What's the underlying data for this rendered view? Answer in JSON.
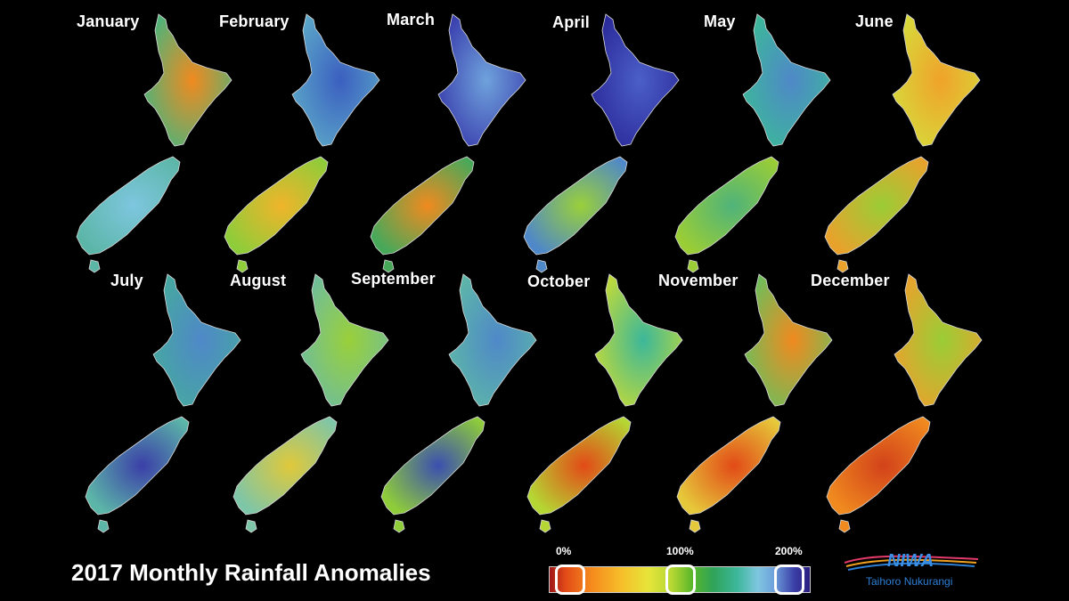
{
  "months": [
    {
      "label": "January",
      "colors": {
        "north": "#4fb37a",
        "north_hot": "#f08a1f",
        "south": "#5cb6a8",
        "south_hot": "#7ec6df"
      }
    },
    {
      "label": "February",
      "colors": {
        "north": "#5aa6c8",
        "north_hot": "#3b5fc0",
        "south": "#8fcc3a",
        "south_hot": "#f0b42a"
      }
    },
    {
      "label": "March",
      "colors": {
        "north": "#3a3fae",
        "north_hot": "#6fa2dc",
        "south": "#48a85a",
        "south_hot": "#f08a1f"
      }
    },
    {
      "label": "April",
      "colors": {
        "north": "#2b2a9a",
        "north_hot": "#4b5fc8",
        "south": "#4f88c8",
        "south_hot": "#9ad03a"
      }
    },
    {
      "label": "May",
      "colors": {
        "north": "#3cb79a",
        "north_hot": "#4f88c8",
        "south": "#9acd36",
        "south_hot": "#4fb37a"
      }
    },
    {
      "label": "June",
      "colors": {
        "north": "#d7d93a",
        "north_hot": "#f0a22a",
        "south": "#e8a22c",
        "south_hot": "#9acd36"
      }
    },
    {
      "label": "July",
      "colors": {
        "north": "#46a8a0",
        "north_hot": "#4f88c8",
        "south": "#5cb6a8",
        "south_hot": "#3b3fa8"
      }
    },
    {
      "label": "August",
      "colors": {
        "north": "#6fbd9a",
        "north_hot": "#9ad03a",
        "south": "#7ec6a8",
        "south_hot": "#e0c83a"
      }
    },
    {
      "label": "September",
      "colors": {
        "north": "#5cb6a8",
        "north_hot": "#4f88c8",
        "south": "#8fcc3a",
        "south_hot": "#3b4fb0"
      }
    },
    {
      "label": "October",
      "colors": {
        "north": "#bfd93a",
        "north_hot": "#3cb79a",
        "south": "#b5d733",
        "south_hot": "#e24a17"
      }
    },
    {
      "label": "November",
      "colors": {
        "north": "#6fbd5a",
        "north_hot": "#f08a1f",
        "south": "#e6c93a",
        "south_hot": "#e24a17"
      }
    },
    {
      "label": "December",
      "colors": {
        "north": "#e8a22c",
        "north_hot": "#9acd36",
        "south": "#f08a1f",
        "south_hot": "#d2421a"
      }
    }
  ],
  "title": "2017 Monthly Rainfall Anomalies",
  "legend": {
    "ticks": [
      "0%",
      "100%",
      "200%"
    ],
    "colors": [
      "#a0161a",
      "#f58a1c",
      "#e6e53a",
      "#57b629",
      "#3cb79a",
      "#7ec6df",
      "#2b1e7e"
    ]
  },
  "logo": {
    "name": "NIWA",
    "tagline": "Taihoro Nukurangi"
  }
}
